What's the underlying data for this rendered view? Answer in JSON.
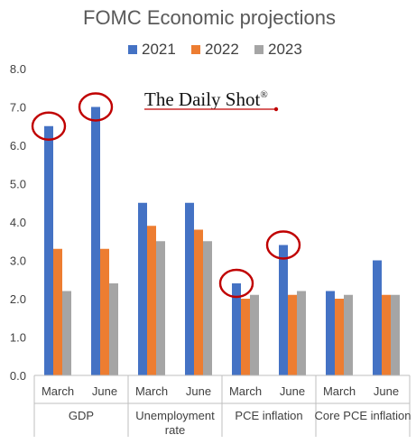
{
  "chart_data": {
    "type": "bar",
    "title": "FOMC Economic projections",
    "watermark": "The Daily Shot",
    "watermark_mark": "®",
    "ylim": [
      0,
      8
    ],
    "yticks": [
      "0.0",
      "1.0",
      "2.0",
      "3.0",
      "4.0",
      "5.0",
      "6.0",
      "7.0",
      "8.0"
    ],
    "grid": false,
    "legend_position": "top",
    "groups": [
      {
        "label": "GDP",
        "label_lines": [
          "GDP"
        ],
        "subcategories": [
          "March",
          "June"
        ]
      },
      {
        "label": "Unemployment rate",
        "label_lines": [
          "Unemployment",
          "rate"
        ],
        "subcategories": [
          "March",
          "June"
        ]
      },
      {
        "label": "PCE inflation",
        "label_lines": [
          "PCE inflation"
        ],
        "subcategories": [
          "March",
          "June"
        ]
      },
      {
        "label": "Core PCE inflation",
        "label_lines": [
          "Core PCE inflation"
        ],
        "subcategories": [
          "March",
          "June"
        ]
      }
    ],
    "categories": [
      "GDP March",
      "GDP June",
      "Unemployment rate March",
      "Unemployment rate June",
      "PCE inflation March",
      "PCE inflation June",
      "Core PCE inflation March",
      "Core PCE inflation June"
    ],
    "series": [
      {
        "name": "2021",
        "color": "#4472C4",
        "values": [
          6.5,
          7.0,
          4.5,
          4.5,
          2.4,
          3.4,
          2.2,
          3.0
        ]
      },
      {
        "name": "2022",
        "color": "#ED7D31",
        "values": [
          3.3,
          3.3,
          3.9,
          3.8,
          2.0,
          2.1,
          2.0,
          2.1
        ]
      },
      {
        "name": "2023",
        "color": "#A5A5A5",
        "values": [
          2.2,
          2.4,
          3.5,
          3.5,
          2.1,
          2.2,
          2.1,
          2.1
        ]
      }
    ],
    "highlight_circles": [
      {
        "category_index": 0,
        "series_index": 0
      },
      {
        "category_index": 1,
        "series_index": 0
      },
      {
        "category_index": 4,
        "series_index": 0
      },
      {
        "category_index": 5,
        "series_index": 0
      }
    ],
    "highlight_color": "#C00000"
  }
}
